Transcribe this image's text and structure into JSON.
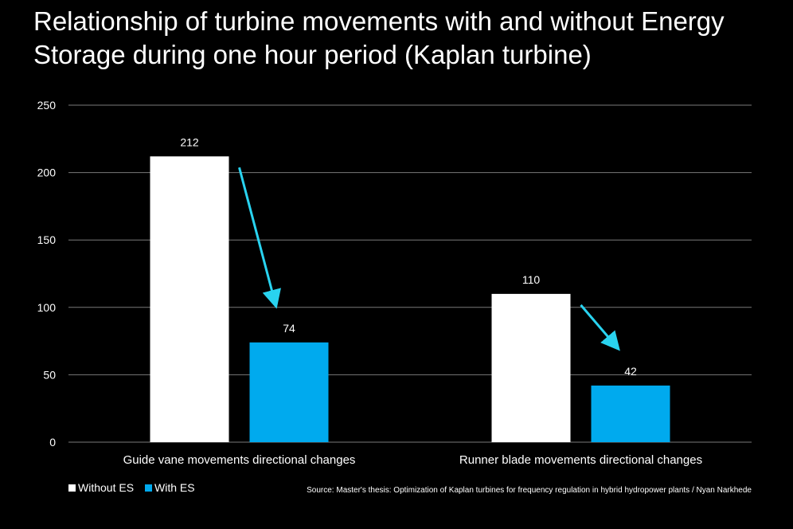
{
  "title": "Relationship of turbine movements with and without Energy Storage during one hour period (Kaplan turbine)",
  "source": "Source: Master's thesis: Optimization of Kaplan turbines for frequency regulation in hybrid hydropower plants / Nyan Narkhede",
  "colors": {
    "background": "#000000",
    "without_es": "#ffffff",
    "with_es": "#00aaee",
    "arrow": "#29d3f0",
    "grid": "#7a7a7a"
  },
  "chart_data": {
    "type": "bar",
    "title": "Relationship of turbine movements with and without Energy Storage during one hour period (Kaplan turbine)",
    "categories": [
      "Guide vane movements directional changes",
      "Runner blade movements directional changes"
    ],
    "series": [
      {
        "name": "Without ES",
        "values": [
          212,
          110
        ]
      },
      {
        "name": "With ES",
        "values": [
          74,
          42
        ]
      }
    ],
    "xlabel": "",
    "ylabel": "",
    "ylim": [
      0,
      250
    ],
    "yticks": [
      0,
      50,
      100,
      150,
      200,
      250
    ],
    "grid": true,
    "legend_position": "bottom-left",
    "annotations": [
      "down-arrow from Without ES to With ES in each category"
    ]
  }
}
